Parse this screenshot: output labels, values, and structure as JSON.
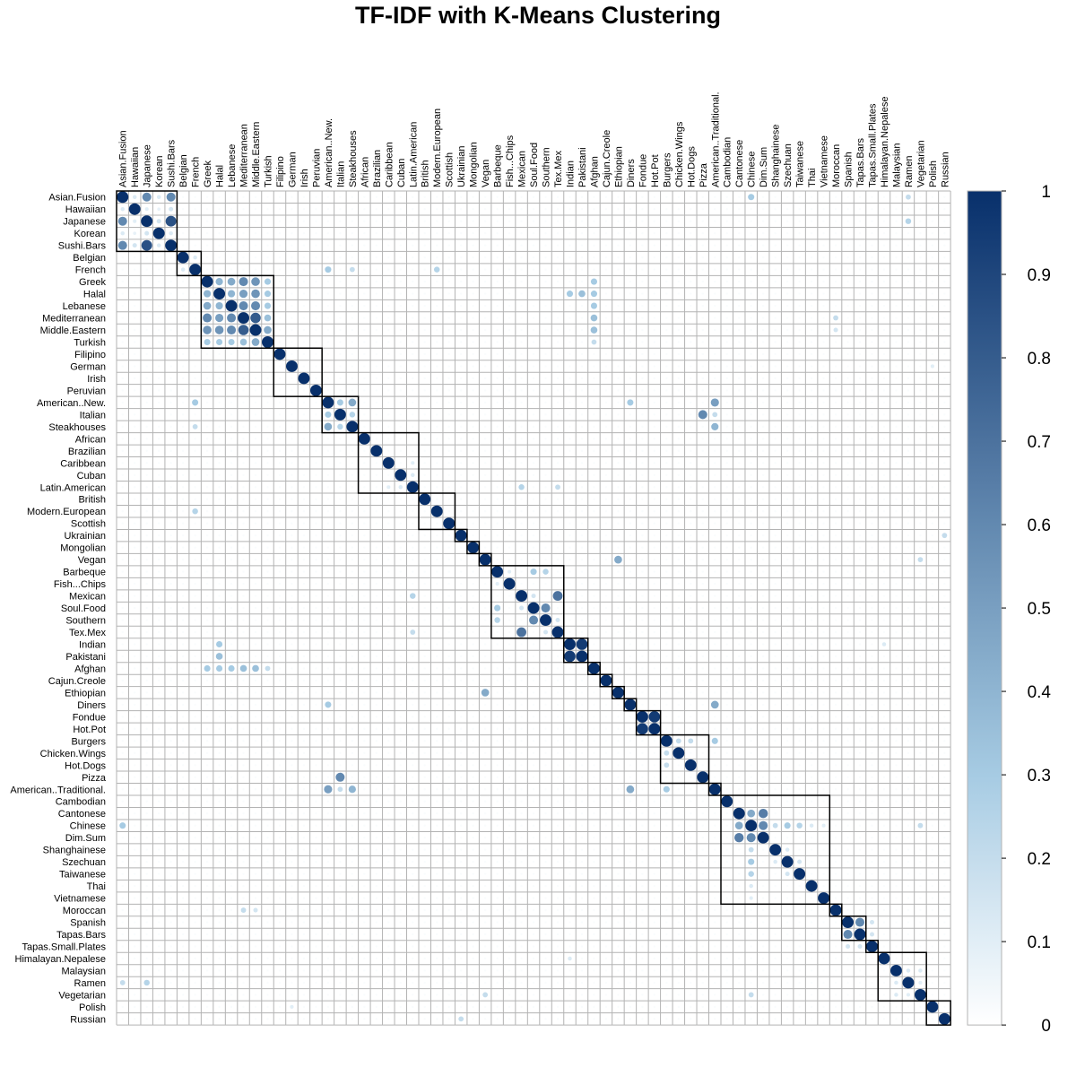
{
  "chart_data": {
    "type": "heatmap",
    "title": "TF-IDF with K-Means Clustering",
    "labels": [
      "Asian.Fusion",
      "Hawaiian",
      "Japanese",
      "Korean",
      "Sushi.Bars",
      "Belgian",
      "French",
      "Greek",
      "Halal",
      "Lebanese",
      "Mediterranean",
      "Middle.Eastern",
      "Turkish",
      "Filipino",
      "German",
      "Irish",
      "Peruvian",
      "American..New.",
      "Italian",
      "Steakhouses",
      "African",
      "Brazilian",
      "Caribbean",
      "Cuban",
      "Latin.American",
      "British",
      "Modern.European",
      "Scottish",
      "Ukrainian",
      "Mongolian",
      "Vegan",
      "Barbeque",
      "Fish...Chips",
      "Mexican",
      "Soul.Food",
      "Southern",
      "Tex.Mex",
      "Indian",
      "Pakistani",
      "Afghan",
      "Cajun.Creole",
      "Ethiopian",
      "Diners",
      "Fondue",
      "Hot.Pot",
      "Burgers",
      "Chicken.Wings",
      "Hot.Dogs",
      "Pizza",
      "American..Traditional.",
      "Cambodian",
      "Cantonese",
      "Chinese",
      "Dim.Sum",
      "Shanghainese",
      "Szechuan",
      "Taiwanese",
      "Thai",
      "Vietnamese",
      "Moroccan",
      "Spanish",
      "Tapas.Bars",
      "Tapas.Small.Plates",
      "Himalayan.Nepalese",
      "Malaysian",
      "Ramen",
      "Vegetarian",
      "Polish",
      "Russian"
    ],
    "clusters": [
      [
        0,
        4
      ],
      [
        5,
        6
      ],
      [
        7,
        12
      ],
      [
        13,
        16
      ],
      [
        17,
        19
      ],
      [
        20,
        24
      ],
      [
        25,
        27
      ],
      [
        28,
        28
      ],
      [
        29,
        29
      ],
      [
        30,
        30
      ],
      [
        31,
        36
      ],
      [
        37,
        38
      ],
      [
        39,
        39
      ],
      [
        40,
        40
      ],
      [
        41,
        41
      ],
      [
        42,
        42
      ],
      [
        43,
        44
      ],
      [
        45,
        48
      ],
      [
        49,
        49
      ],
      [
        50,
        58
      ],
      [
        59,
        59
      ],
      [
        60,
        61
      ],
      [
        62,
        62
      ],
      [
        63,
        66
      ],
      [
        67,
        68
      ]
    ],
    "color_scale": {
      "min": 0,
      "max": 1,
      "ticks": [
        "0",
        "0.1",
        "0.2",
        "0.3",
        "0.4",
        "0.5",
        "0.6",
        "0.7",
        "0.8",
        "0.9",
        "1"
      ],
      "low_color": "#ffffff",
      "mid_color": "#a6cbe3",
      "high_color": "#08306b"
    },
    "background_value": 0.02,
    "strong_pairs": [
      [
        "Asian.Fusion",
        "Japanese",
        0.6
      ],
      [
        "Asian.Fusion",
        "Sushi.Bars",
        0.6
      ],
      [
        "Asian.Fusion",
        "Hawaiian",
        0.12
      ],
      [
        "Asian.Fusion",
        "Korean",
        0.12
      ],
      [
        "Hawaiian",
        "Japanese",
        0.1
      ],
      [
        "Hawaiian",
        "Korean",
        0.08
      ],
      [
        "Hawaiian",
        "Sushi.Bars",
        0.15
      ],
      [
        "Japanese",
        "Sushi.Bars",
        0.85
      ],
      [
        "Japanese",
        "Korean",
        0.15
      ],
      [
        "Korean",
        "Sushi.Bars",
        0.12
      ],
      [
        "Belgian",
        "French",
        0.12
      ],
      [
        "Greek",
        "Halal",
        0.4
      ],
      [
        "Greek",
        "Lebanese",
        0.45
      ],
      [
        "Greek",
        "Mediterranean",
        0.6
      ],
      [
        "Greek",
        "Middle.Eastern",
        0.55
      ],
      [
        "Greek",
        "Turkish",
        0.3
      ],
      [
        "Halal",
        "Lebanese",
        0.4
      ],
      [
        "Halal",
        "Mediterranean",
        0.5
      ],
      [
        "Halal",
        "Middle.Eastern",
        0.55
      ],
      [
        "Halal",
        "Turkish",
        0.3
      ],
      [
        "Lebanese",
        "Mediterranean",
        0.6
      ],
      [
        "Lebanese",
        "Middle.Eastern",
        0.6
      ],
      [
        "Lebanese",
        "Turkish",
        0.3
      ],
      [
        "Mediterranean",
        "Middle.Eastern",
        0.8
      ],
      [
        "Mediterranean",
        "Turkish",
        0.35
      ],
      [
        "Middle.Eastern",
        "Turkish",
        0.45
      ],
      [
        "Greek",
        "Afghan",
        0.3
      ],
      [
        "Halal",
        "Afghan",
        0.3
      ],
      [
        "Lebanese",
        "Afghan",
        0.3
      ],
      [
        "Mediterranean",
        "Afghan",
        0.35
      ],
      [
        "Middle.Eastern",
        "Afghan",
        0.35
      ],
      [
        "Turkish",
        "Afghan",
        0.2
      ],
      [
        "Halal",
        "Indian",
        0.3
      ],
      [
        "Halal",
        "Pakistani",
        0.35
      ],
      [
        "American..New.",
        "Italian",
        0.3
      ],
      [
        "American..New.",
        "Steakhouses",
        0.45
      ],
      [
        "Italian",
        "Steakhouses",
        0.25
      ],
      [
        "American..New.",
        "American..Traditional.",
        0.5
      ],
      [
        "Steakhouses",
        "American..Traditional.",
        0.4
      ],
      [
        "Italian",
        "American..Traditional.",
        0.2
      ],
      [
        "Italian",
        "Pizza",
        0.6
      ],
      [
        "American..New.",
        "Diners",
        0.3
      ],
      [
        "Diners",
        "American..Traditional.",
        0.45
      ],
      [
        "Burgers",
        "American..Traditional.",
        0.3
      ],
      [
        "Burgers",
        "Chicken.Wings",
        0.2
      ],
      [
        "Burgers",
        "Hot.Dogs",
        0.2
      ],
      [
        "French",
        "Modern.European",
        0.25
      ],
      [
        "French",
        "American..New.",
        0.3
      ],
      [
        "French",
        "Steakhouses",
        0.2
      ],
      [
        "Latin.American",
        "Mexican",
        0.25
      ],
      [
        "Latin.American",
        "Tex.Mex",
        0.2
      ],
      [
        "Latin.American",
        "Caribbean",
        0.1
      ],
      [
        "Latin.American",
        "Cuban",
        0.12
      ],
      [
        "Vegan",
        "Ethiopian",
        0.45
      ],
      [
        "Vegan",
        "Vegetarian",
        0.2
      ],
      [
        "Barbeque",
        "Soul.Food",
        0.3
      ],
      [
        "Barbeque",
        "Southern",
        0.25
      ],
      [
        "Barbeque",
        "Fish...Chips",
        0.1
      ],
      [
        "Mexican",
        "Tex.Mex",
        0.7
      ],
      [
        "Mexican",
        "Soul.Food",
        0.15
      ],
      [
        "Soul.Food",
        "Southern",
        0.6
      ],
      [
        "Southern",
        "Tex.Mex",
        0.15
      ],
      [
        "Indian",
        "Pakistani",
        0.95
      ],
      [
        "Indian",
        "Himalayan.Nepalese",
        0.12
      ],
      [
        "Fondue",
        "Hot.Pot",
        0.95
      ],
      [
        "Cantonese",
        "Chinese",
        0.45
      ],
      [
        "Cantonese",
        "Dim.Sum",
        0.65
      ],
      [
        "Chinese",
        "Dim.Sum",
        0.6
      ],
      [
        "Chinese",
        "Shanghainese",
        0.2
      ],
      [
        "Chinese",
        "Szechuan",
        0.3
      ],
      [
        "Chinese",
        "Taiwanese",
        0.25
      ],
      [
        "Chinese",
        "Thai",
        0.12
      ],
      [
        "Chinese",
        "Vietnamese",
        0.1
      ],
      [
        "Szechuan",
        "Taiwanese",
        0.15
      ],
      [
        "Shanghainese",
        "Szechuan",
        0.12
      ],
      [
        "Asian.Fusion",
        "Chinese",
        0.3
      ],
      [
        "Asian.Fusion",
        "Ramen",
        0.2
      ],
      [
        "Japanese",
        "Ramen",
        0.25
      ],
      [
        "Chinese",
        "Vegetarian",
        0.2
      ],
      [
        "Spanish",
        "Tapas.Bars",
        0.6
      ],
      [
        "Tapas.Bars",
        "Tapas.Small.Plates",
        0.15
      ],
      [
        "Spanish",
        "Tapas.Small.Plates",
        0.15
      ],
      [
        "Malaysian",
        "Ramen",
        0.12
      ],
      [
        "Malaysian",
        "Vegetarian",
        0.12
      ],
      [
        "Ramen",
        "Vegetarian",
        0.1
      ],
      [
        "Ukrainian",
        "Russian",
        0.2
      ],
      [
        "German",
        "Polish",
        0.1
      ],
      [
        "Moroccan",
        "Mediterranean",
        0.2
      ],
      [
        "Moroccan",
        "Middle.Eastern",
        0.15
      ]
    ]
  }
}
